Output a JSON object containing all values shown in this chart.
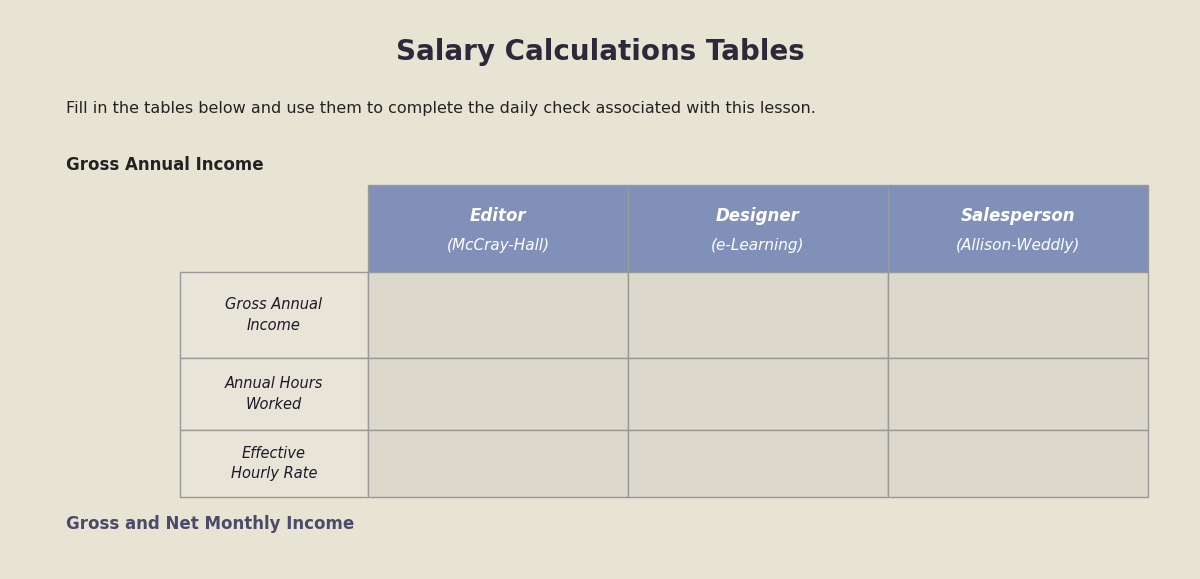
{
  "title": "Salary Calculations Tables",
  "subtitle": "Fill in the tables below and use them to complete the daily check associated with this lesson.",
  "section1_label": "Gross Annual Income",
  "section2_label": "Gross and Net Monthly Income",
  "col_headers": [
    [
      "Editor",
      "(McCray-Hall)"
    ],
    [
      "Designer",
      "(e-Learning)"
    ],
    [
      "Salesperson",
      "(Allison-Weddly)"
    ]
  ],
  "row_labels": [
    [
      "Gross Annual",
      "Income"
    ],
    [
      "Annual Hours",
      "Worked"
    ],
    [
      "Effective",
      "Hourly Rate"
    ]
  ],
  "header_bg_color": "#8090b8",
  "header_text_color": "#ffffff",
  "cell_bg_color": "#ddd8cc",
  "row_label_bg_color": "#e8e4d8",
  "table_border_color": "#999999",
  "bg_color": "#e8e4d4",
  "title_color": "#2a2a3a",
  "subtitle_color": "#222222",
  "section1_color": "#222222",
  "section2_color": "#4a4a6a",
  "title_fontsize": 20,
  "subtitle_fontsize": 11.5,
  "section_label_fontsize": 12,
  "header_fontsize": 12,
  "row_label_fontsize": 10.5
}
